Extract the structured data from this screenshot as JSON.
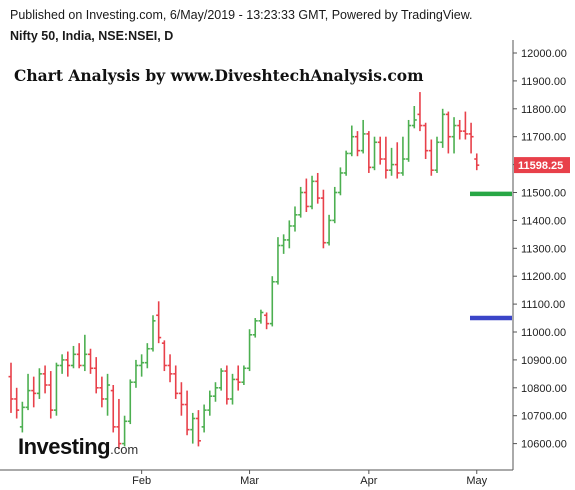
{
  "header": {
    "published": "Published on Investing.com, 6/May/2019 - 13:23:33 GMT, Powered by TradingView.",
    "symbol": "Nifty 50, India, NSE:NSEI, D"
  },
  "watermark_title": "Chart Analysis by www.DiveshtechAnalysis.com",
  "logo": {
    "main": "Investing",
    "suffix": ".com"
  },
  "colors": {
    "up": "#4caf50",
    "down": "#e8404a",
    "last_price_tag": "#e8404a",
    "support_line_green": "#28a745",
    "support_line_blue": "#3a45c8",
    "axis": "#555555"
  },
  "chart_data": {
    "type": "ohlc",
    "ylim": [
      10540,
      12040
    ],
    "y_ticks": [
      "12000.00",
      "11900.00",
      "11800.00",
      "11700.00",
      "11600.00",
      "11500.00",
      "11400.00",
      "11300.00",
      "11200.00",
      "11100.00",
      "11000.00",
      "10900.00",
      "10800.00",
      "10700.00",
      "10600.00"
    ],
    "x_ticks": [
      {
        "label": "Feb",
        "index": 23
      },
      {
        "label": "Mar",
        "index": 42
      },
      {
        "label": "Apr",
        "index": 63
      },
      {
        "label": "May",
        "index": 82
      }
    ],
    "last_price": "11598.25",
    "horizontal_lines": [
      {
        "value": 11495,
        "color": "#28a745"
      },
      {
        "value": 11050,
        "color": "#3a45c8"
      }
    ],
    "bars": [
      {
        "o": 10840,
        "h": 10890,
        "l": 10710,
        "c": 10760
      },
      {
        "o": 10760,
        "h": 10800,
        "l": 10690,
        "c": 10720
      },
      {
        "o": 10660,
        "h": 10750,
        "l": 10640,
        "c": 10730
      },
      {
        "o": 10730,
        "h": 10850,
        "l": 10720,
        "c": 10790
      },
      {
        "o": 10790,
        "h": 10840,
        "l": 10730,
        "c": 10780
      },
      {
        "o": 10780,
        "h": 10870,
        "l": 10760,
        "c": 10850
      },
      {
        "o": 10850,
        "h": 10880,
        "l": 10780,
        "c": 10810
      },
      {
        "o": 10810,
        "h": 10860,
        "l": 10690,
        "c": 10720
      },
      {
        "o": 10720,
        "h": 10890,
        "l": 10700,
        "c": 10880
      },
      {
        "o": 10880,
        "h": 10920,
        "l": 10850,
        "c": 10900
      },
      {
        "o": 10900,
        "h": 10930,
        "l": 10840,
        "c": 10880
      },
      {
        "o": 10880,
        "h": 10950,
        "l": 10870,
        "c": 10920
      },
      {
        "o": 10920,
        "h": 10960,
        "l": 10870,
        "c": 10880
      },
      {
        "o": 10880,
        "h": 10990,
        "l": 10860,
        "c": 10920
      },
      {
        "o": 10920,
        "h": 10940,
        "l": 10850,
        "c": 10870
      },
      {
        "o": 10870,
        "h": 10910,
        "l": 10780,
        "c": 10800
      },
      {
        "o": 10800,
        "h": 10840,
        "l": 10730,
        "c": 10760
      },
      {
        "o": 10760,
        "h": 10850,
        "l": 10700,
        "c": 10810
      },
      {
        "o": 10790,
        "h": 10810,
        "l": 10640,
        "c": 10660
      },
      {
        "o": 10660,
        "h": 10760,
        "l": 10580,
        "c": 10600
      },
      {
        "o": 10600,
        "h": 10700,
        "l": 10590,
        "c": 10680
      },
      {
        "o": 10680,
        "h": 10830,
        "l": 10670,
        "c": 10820
      },
      {
        "o": 10820,
        "h": 10900,
        "l": 10800,
        "c": 10880
      },
      {
        "o": 10880,
        "h": 10920,
        "l": 10840,
        "c": 10890
      },
      {
        "o": 10890,
        "h": 10960,
        "l": 10870,
        "c": 10940
      },
      {
        "o": 10940,
        "h": 11060,
        "l": 10930,
        "c": 11040
      },
      {
        "o": 11060,
        "h": 11110,
        "l": 10960,
        "c": 10980
      },
      {
        "o": 10960,
        "h": 10970,
        "l": 10860,
        "c": 10880
      },
      {
        "o": 10880,
        "h": 10920,
        "l": 10820,
        "c": 10850
      },
      {
        "o": 10850,
        "h": 10880,
        "l": 10760,
        "c": 10780
      },
      {
        "o": 10780,
        "h": 10820,
        "l": 10700,
        "c": 10740
      },
      {
        "o": 10740,
        "h": 10790,
        "l": 10630,
        "c": 10650
      },
      {
        "o": 10650,
        "h": 10710,
        "l": 10600,
        "c": 10690
      },
      {
        "o": 10690,
        "h": 10720,
        "l": 10590,
        "c": 10610
      },
      {
        "o": 10660,
        "h": 10740,
        "l": 10640,
        "c": 10720
      },
      {
        "o": 10720,
        "h": 10790,
        "l": 10700,
        "c": 10770
      },
      {
        "o": 10770,
        "h": 10820,
        "l": 10750,
        "c": 10800
      },
      {
        "o": 10800,
        "h": 10870,
        "l": 10790,
        "c": 10860
      },
      {
        "o": 10860,
        "h": 10880,
        "l": 10740,
        "c": 10760
      },
      {
        "o": 10760,
        "h": 10850,
        "l": 10740,
        "c": 10830
      },
      {
        "o": 10830,
        "h": 10880,
        "l": 10790,
        "c": 10820
      },
      {
        "o": 10820,
        "h": 10880,
        "l": 10810,
        "c": 10870
      },
      {
        "o": 10870,
        "h": 11010,
        "l": 10860,
        "c": 10990
      },
      {
        "o": 10990,
        "h": 11050,
        "l": 10980,
        "c": 11040
      },
      {
        "o": 11040,
        "h": 11080,
        "l": 11030,
        "c": 11070
      },
      {
        "o": 11060,
        "h": 11070,
        "l": 11010,
        "c": 11030
      },
      {
        "o": 11030,
        "h": 11200,
        "l": 11020,
        "c": 11180
      },
      {
        "o": 11180,
        "h": 11340,
        "l": 11170,
        "c": 11310
      },
      {
        "o": 11310,
        "h": 11350,
        "l": 11280,
        "c": 11330
      },
      {
        "o": 11330,
        "h": 11400,
        "l": 11300,
        "c": 11380
      },
      {
        "o": 11380,
        "h": 11450,
        "l": 11360,
        "c": 11420
      },
      {
        "o": 11420,
        "h": 11520,
        "l": 11410,
        "c": 11500
      },
      {
        "o": 11500,
        "h": 11550,
        "l": 11430,
        "c": 11450
      },
      {
        "o": 11450,
        "h": 11560,
        "l": 11440,
        "c": 11540
      },
      {
        "o": 11540,
        "h": 11570,
        "l": 11460,
        "c": 11480
      },
      {
        "o": 11480,
        "h": 11510,
        "l": 11300,
        "c": 11320
      },
      {
        "o": 11320,
        "h": 11420,
        "l": 11310,
        "c": 11400
      },
      {
        "o": 11400,
        "h": 11520,
        "l": 11390,
        "c": 11500
      },
      {
        "o": 11500,
        "h": 11590,
        "l": 11490,
        "c": 11570
      },
      {
        "o": 11570,
        "h": 11650,
        "l": 11560,
        "c": 11640
      },
      {
        "o": 11640,
        "h": 11740,
        "l": 11630,
        "c": 11700
      },
      {
        "o": 11700,
        "h": 11720,
        "l": 11630,
        "c": 11650
      },
      {
        "o": 11650,
        "h": 11760,
        "l": 11640,
        "c": 11710
      },
      {
        "o": 11710,
        "h": 11720,
        "l": 11570,
        "c": 11590
      },
      {
        "o": 11590,
        "h": 11700,
        "l": 11580,
        "c": 11680
      },
      {
        "o": 11680,
        "h": 11700,
        "l": 11600,
        "c": 11620
      },
      {
        "o": 11620,
        "h": 11700,
        "l": 11550,
        "c": 11580
      },
      {
        "o": 11580,
        "h": 11660,
        "l": 11560,
        "c": 11600
      },
      {
        "o": 11600,
        "h": 11680,
        "l": 11550,
        "c": 11570
      },
      {
        "o": 11570,
        "h": 11700,
        "l": 11560,
        "c": 11620
      },
      {
        "o": 11620,
        "h": 11760,
        "l": 11610,
        "c": 11740
      },
      {
        "o": 11740,
        "h": 11810,
        "l": 11730,
        "c": 11760
      },
      {
        "o": 11780,
        "h": 11860,
        "l": 11720,
        "c": 11740
      },
      {
        "o": 11740,
        "h": 11750,
        "l": 11620,
        "c": 11650
      },
      {
        "o": 11650,
        "h": 11690,
        "l": 11560,
        "c": 11580
      },
      {
        "o": 11580,
        "h": 11700,
        "l": 11570,
        "c": 11680
      },
      {
        "o": 11680,
        "h": 11800,
        "l": 11660,
        "c": 11780
      },
      {
        "o": 11780,
        "h": 11790,
        "l": 11640,
        "c": 11700
      },
      {
        "o": 11700,
        "h": 11770,
        "l": 11640,
        "c": 11740
      },
      {
        "o": 11740,
        "h": 11760,
        "l": 11690,
        "c": 11720
      },
      {
        "o": 11720,
        "h": 11790,
        "l": 11690,
        "c": 11710
      },
      {
        "o": 11710,
        "h": 11750,
        "l": 11640,
        "c": 11700
      },
      {
        "o": 11620,
        "h": 11640,
        "l": 11580,
        "c": 11598
      }
    ]
  }
}
